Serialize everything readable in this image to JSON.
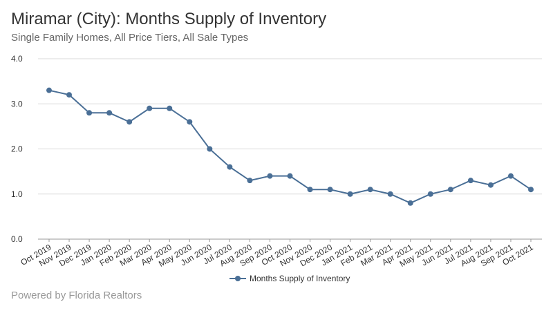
{
  "header": {
    "title": "Miramar (City): Months Supply of Inventory",
    "subtitle": "Single Family Homes, All Price Tiers, All Sale Types"
  },
  "footer": {
    "text": "Powered by Florida Realtors"
  },
  "colors": {
    "series": "#4a6f96",
    "grid": "#d9d9d9",
    "axis": "#999999"
  },
  "chart_data": {
    "type": "line",
    "title": "Miramar (City): Months Supply of Inventory",
    "subtitle": "Single Family Homes, All Price Tiers, All Sale Types",
    "xlabel": "",
    "ylabel": "",
    "ylim": [
      0,
      4
    ],
    "yticks": [
      "0.0",
      "1.0",
      "2.0",
      "3.0",
      "4.0"
    ],
    "grid": true,
    "legend": "bottom-center",
    "categories": [
      "Oct 2019",
      "Nov 2019",
      "Dec 2019",
      "Jan 2020",
      "Feb 2020",
      "Mar 2020",
      "Apr 2020",
      "May 2020",
      "Jun 2020",
      "Jul 2020",
      "Aug 2020",
      "Sep 2020",
      "Oct 2020",
      "Nov 2020",
      "Dec 2020",
      "Jan 2021",
      "Feb 2021",
      "Mar 2021",
      "Apr 2021",
      "May 2021",
      "Jun 2021",
      "Jul 2021",
      "Aug 2021",
      "Sep 2021",
      "Oct 2021"
    ],
    "series": [
      {
        "name": "Months Supply of Inventory",
        "values": [
          3.3,
          3.2,
          2.8,
          2.8,
          2.6,
          2.9,
          2.9,
          2.6,
          2.0,
          1.6,
          1.3,
          1.4,
          1.4,
          1.1,
          1.1,
          1.0,
          1.1,
          1.0,
          0.8,
          1.0,
          1.1,
          1.3,
          1.2,
          1.4,
          1.1
        ]
      }
    ]
  }
}
